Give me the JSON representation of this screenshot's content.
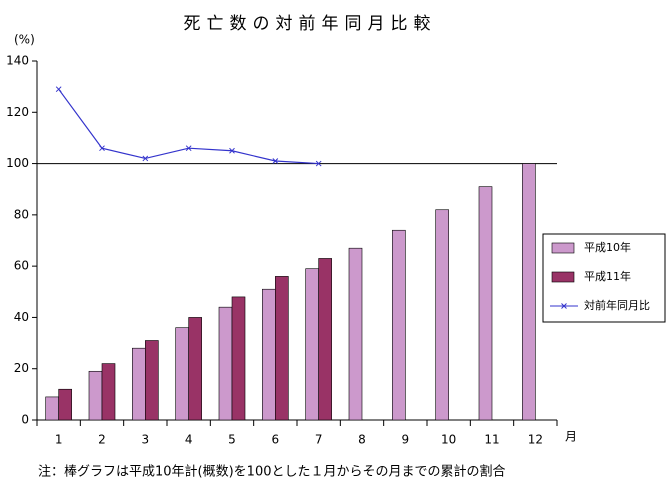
{
  "chart_data": {
    "type": "bar_line",
    "title": "死亡数の対前年同月比較",
    "y_unit": "(%)",
    "x_unit": "月",
    "note": "注：棒グラフは平成10年計(概数)を100とした１月からその月までの累計の割合",
    "categories": [
      "1",
      "2",
      "3",
      "4",
      "5",
      "6",
      "7",
      "8",
      "9",
      "10",
      "11",
      "12"
    ],
    "series": [
      {
        "name": "平成10年",
        "type": "bar",
        "color": "#cc99cc",
        "values": [
          9,
          19,
          28,
          36,
          44,
          51,
          59,
          67,
          74,
          82,
          91,
          100
        ]
      },
      {
        "name": "平成11年",
        "type": "bar",
        "color": "#993366",
        "values": [
          12,
          22,
          31,
          40,
          48,
          56,
          63,
          null,
          null,
          null,
          null,
          null
        ]
      },
      {
        "name": "対前年同月比",
        "type": "line",
        "color": "#3333cc",
        "values": [
          129,
          106,
          102,
          106,
          105,
          101,
          100,
          null,
          null,
          null,
          null,
          null
        ]
      }
    ],
    "reference_line": 100,
    "ylim": [
      0,
      140
    ],
    "yticks": [
      0,
      20,
      40,
      60,
      80,
      100,
      120,
      140
    ],
    "grid": false,
    "legend": "right"
  }
}
